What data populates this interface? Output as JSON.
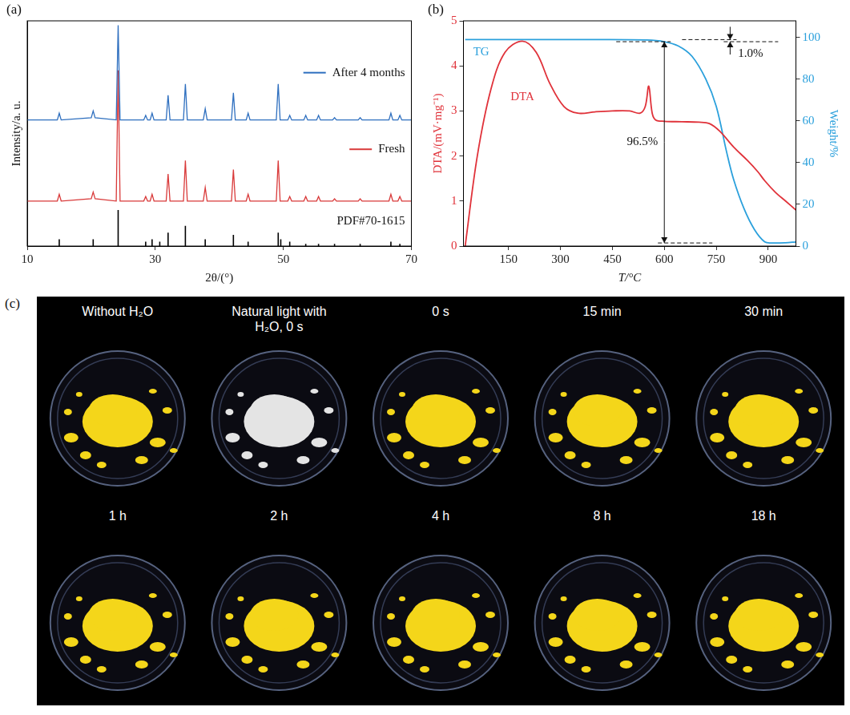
{
  "chart_data": [
    {
      "type": "line",
      "panel_label": "(a)",
      "x_label": "2θ/(°)",
      "y_label": "Intensity/a. u.",
      "xlim": [
        10,
        70
      ],
      "xticks": [
        10,
        30,
        50,
        70
      ],
      "ylim": [
        0,
        100
      ],
      "grid": false,
      "tick_labels": "x",
      "x": [
        10,
        14.7,
        15,
        15.3,
        20,
        20.3,
        20.6,
        23.9,
        24.2,
        24.5,
        28.2,
        28.5,
        28.8,
        29.2,
        29.5,
        29.8,
        31.7,
        32,
        32.3,
        34.4,
        34.7,
        35,
        37.5,
        37.8,
        38.1,
        41.9,
        42.2,
        42.5,
        44.2,
        44.5,
        44.8,
        48.9,
        49.2,
        49.5,
        50.7,
        51,
        51.3,
        53.2,
        53.5,
        53.8,
        55.2,
        55.5,
        55.8,
        57.7,
        58,
        58.3,
        61.7,
        62,
        62.3,
        66.5,
        66.8,
        67.1,
        67.9,
        68.2,
        68.5,
        70
      ],
      "series": [
        {
          "name": "After 4 months",
          "color": "#2e6fbf",
          "values": [
            56,
            56,
            59,
            56,
            57,
            60,
            57,
            56,
            98,
            56,
            56,
            58,
            56,
            56,
            59,
            56,
            56,
            67,
            56,
            56,
            72,
            56,
            56,
            61,
            56,
            56,
            68,
            56,
            56,
            59,
            56,
            56,
            72,
            56,
            56,
            58,
            56,
            56,
            58,
            56,
            56,
            58,
            56,
            56,
            57,
            56,
            56,
            57,
            56,
            56,
            59,
            56,
            56,
            58,
            56,
            56
          ]
        },
        {
          "name": "Fresh",
          "color": "#d93a3a",
          "values": [
            20,
            20,
            23,
            20,
            21,
            24,
            21,
            20,
            78,
            20,
            20,
            22,
            20,
            20,
            23,
            20,
            20,
            32,
            20,
            20,
            38,
            20,
            20,
            26,
            20,
            20,
            34,
            20,
            20,
            23,
            20,
            20,
            38,
            20,
            20,
            22,
            20,
            20,
            22,
            20,
            20,
            22,
            20,
            20,
            21,
            20,
            20,
            21,
            20,
            20,
            23,
            20,
            20,
            22,
            20,
            20
          ]
        },
        {
          "name": "PDF#70-1615",
          "color": "#000000",
          "type": "bar",
          "x": [
            15,
            20.3,
            24.2,
            28.5,
            29.5,
            30.7,
            32,
            34.7,
            37.8,
            42.2,
            44.5,
            49.2,
            49.6,
            51,
            53.5,
            55.5,
            58,
            62,
            66.8,
            68.2
          ],
          "values": [
            3,
            3,
            16,
            2,
            3,
            2,
            6,
            9,
            3,
            5,
            2,
            6,
            3,
            2,
            1,
            1,
            1,
            1,
            2,
            1
          ]
        }
      ]
    },
    {
      "type": "line",
      "panel_label": "(b)",
      "x_label": "T/°C",
      "y_label": "DTA/(mV·mg⁻¹)",
      "y2_label": "Weight/%",
      "xlim": [
        20,
        980
      ],
      "xticks": [
        150,
        300,
        450,
        600,
        750,
        900
      ],
      "ylim": [
        0,
        5
      ],
      "yticks": [
        0,
        1,
        2,
        3,
        4,
        5
      ],
      "y2lim": [
        0,
        108
      ],
      "y2ticks": [
        0,
        20,
        40,
        60,
        80,
        100
      ],
      "grid": false,
      "series": [
        {
          "name": "DTA",
          "color": "#e0323a",
          "x": [
            25,
            60,
            100,
            140,
            190,
            230,
            270,
            310,
            350,
            400,
            450,
            500,
            530,
            545,
            555,
            565,
            575,
            600,
            650,
            700,
            730,
            760,
            800,
            840,
            870,
            890,
            920,
            950,
            980
          ],
          "values": [
            0,
            2.0,
            3.5,
            4.3,
            4.55,
            4.3,
            3.6,
            3.1,
            2.95,
            2.98,
            3.0,
            3.0,
            2.95,
            3.1,
            3.55,
            2.95,
            2.8,
            2.77,
            2.76,
            2.75,
            2.72,
            2.55,
            2.2,
            1.9,
            1.65,
            1.45,
            1.2,
            1.0,
            0.8
          ]
        },
        {
          "name": "TG",
          "color": "#2ba0dc",
          "axis": "y2",
          "x": [
            25,
            200,
            400,
            550,
            600,
            640,
            680,
            720,
            750,
            780,
            800,
            830,
            860,
            890,
            910,
            950,
            980
          ],
          "values": [
            99,
            99,
            99,
            98.8,
            98,
            96,
            91,
            80,
            67,
            45,
            32,
            18,
            8,
            2,
            1.5,
            1.6,
            2.0
          ]
        }
      ],
      "annotations": [
        {
          "text": "1.0%",
          "x": 790,
          "from": 99,
          "to": 98
        },
        {
          "text": "96.5%",
          "x": 600,
          "from": 98,
          "to": 1.5
        }
      ]
    }
  ],
  "panel_c": {
    "panel_label": "(c)",
    "photos": [
      {
        "caption": "Without H₂O",
        "color": "#f4d61a"
      },
      {
        "caption": "Natural light with H₂O, 0 s",
        "color": "#e4e4e4"
      },
      {
        "caption": "0 s",
        "color": "#f4d61a"
      },
      {
        "caption": "15 min",
        "color": "#f4d61a"
      },
      {
        "caption": "30 min",
        "color": "#f4d61a"
      },
      {
        "caption": "1 h",
        "color": "#f4d61a"
      },
      {
        "caption": "2 h",
        "color": "#f4d61a"
      },
      {
        "caption": "4 h",
        "color": "#f4d61a"
      },
      {
        "caption": "8 h",
        "color": "#f4d61a"
      },
      {
        "caption": "18 h",
        "color": "#f4d61a"
      }
    ]
  }
}
